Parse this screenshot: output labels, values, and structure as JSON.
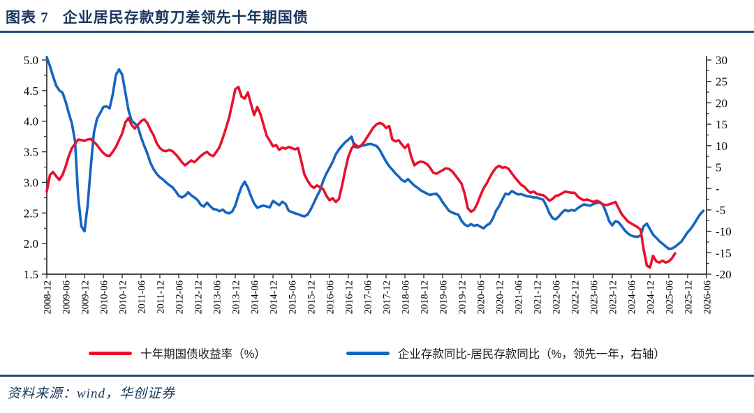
{
  "header": {
    "figure_label": "图表 7",
    "title": "企业居民存款剪刀差领先十年期国债"
  },
  "footer": {
    "source": "资料来源：wind，华创证券"
  },
  "colors": {
    "accent_navy": "#17365d",
    "rule_navy": "#1f4e79",
    "red_series": "#e8112d",
    "blue_series": "#1565c0",
    "axis": "#2f2f2f",
    "tick_text": "#000000"
  },
  "legend": {
    "items": [
      {
        "label": "十年期国债收益率（%）",
        "color": "#e8112d"
      },
      {
        "label": "企业存款同比-居民存款同比（%，领先一年，右轴）",
        "color": "#1565c0"
      }
    ]
  },
  "chart_data": {
    "type": "line",
    "title": "企业居民存款剪刀差领先十年期国债",
    "grid": false,
    "legend_position": "bottom",
    "x_start": "2008-12",
    "x_frequency": "monthly",
    "x_tick_every_months": 6,
    "x_tick_labels": [
      "2008-12",
      "2009-06",
      "2009-12",
      "2010-06",
      "2010-12",
      "2011-06",
      "2011-12",
      "2012-06",
      "2012-12",
      "2013-06",
      "2013-12",
      "2014-06",
      "2014-12",
      "2015-06",
      "2015-12",
      "2016-06",
      "2016-12",
      "2017-06",
      "2017-12",
      "2018-06",
      "2018-12",
      "2019-06",
      "2019-12",
      "2020-06",
      "2020-12",
      "2021-06",
      "2021-12",
      "2022-06",
      "2022-12",
      "2023-06",
      "2023-12",
      "2024-06",
      "2024-12",
      "2025-06",
      "2025-12",
      "2026-06"
    ],
    "left_axis": {
      "min": 1.5,
      "max": 5.0,
      "tick_values": [
        5.0,
        4.5,
        4.0,
        3.5,
        3.0,
        2.5,
        2.0,
        1.5
      ],
      "tick_labels": [
        "5.0",
        "4.5",
        "4.0",
        "3.5",
        "3.0",
        "2.5",
        "2.0",
        "1.5"
      ],
      "minor_tick_step": 0.25
    },
    "right_axis": {
      "min": -20,
      "max": 30,
      "tick_values": [
        30,
        25,
        20,
        15,
        10,
        5,
        0,
        -5,
        -10,
        -15,
        -20
      ],
      "tick_labels": [
        "30",
        "25",
        "20",
        "15",
        "10",
        "5",
        "-",
        "-5",
        "-10",
        "-15",
        "-20"
      ],
      "minor_tick_step": 2.5
    },
    "series": [
      {
        "name": "十年期国债收益率（%）",
        "axis": "left",
        "color": "#e8112d",
        "start": "2008-12",
        "end": "2025-08",
        "values": [
          2.85,
          3.12,
          3.17,
          3.1,
          3.04,
          3.12,
          3.26,
          3.43,
          3.56,
          3.63,
          3.7,
          3.69,
          3.68,
          3.7,
          3.71,
          3.66,
          3.61,
          3.54,
          3.48,
          3.44,
          3.43,
          3.5,
          3.58,
          3.69,
          3.8,
          3.98,
          4.05,
          3.94,
          3.88,
          3.94,
          4.0,
          4.03,
          3.97,
          3.86,
          3.77,
          3.64,
          3.56,
          3.52,
          3.51,
          3.53,
          3.51,
          3.46,
          3.4,
          3.33,
          3.28,
          3.32,
          3.36,
          3.33,
          3.38,
          3.43,
          3.47,
          3.5,
          3.45,
          3.43,
          3.5,
          3.58,
          3.72,
          3.88,
          4.05,
          4.28,
          4.52,
          4.56,
          4.4,
          4.37,
          4.47,
          4.28,
          4.1,
          4.23,
          4.12,
          3.94,
          3.76,
          3.68,
          3.59,
          3.61,
          3.53,
          3.57,
          3.55,
          3.58,
          3.56,
          3.54,
          3.56,
          3.35,
          3.13,
          3.03,
          2.95,
          2.91,
          2.95,
          2.92,
          2.89,
          2.78,
          2.71,
          2.74,
          2.68,
          2.73,
          2.95,
          3.2,
          3.42,
          3.55,
          3.63,
          3.58,
          3.6,
          3.66,
          3.74,
          3.82,
          3.9,
          3.95,
          3.97,
          3.95,
          3.89,
          3.92,
          3.7,
          3.67,
          3.69,
          3.62,
          3.56,
          3.62,
          3.42,
          3.28,
          3.32,
          3.34,
          3.33,
          3.3,
          3.24,
          3.16,
          3.14,
          3.17,
          3.2,
          3.23,
          3.22,
          3.18,
          3.12,
          3.05,
          2.98,
          2.82,
          2.58,
          2.52,
          2.55,
          2.65,
          2.78,
          2.9,
          2.98,
          3.08,
          3.17,
          3.24,
          3.27,
          3.24,
          3.25,
          3.22,
          3.15,
          3.08,
          3.02,
          2.96,
          2.93,
          2.87,
          2.83,
          2.85,
          2.81,
          2.8,
          2.79,
          2.75,
          2.7,
          2.73,
          2.78,
          2.79,
          2.82,
          2.85,
          2.84,
          2.83,
          2.83,
          2.77,
          2.73,
          2.71,
          2.72,
          2.7,
          2.68,
          2.7,
          2.68,
          2.64,
          2.63,
          2.64,
          2.66,
          2.68,
          2.58,
          2.48,
          2.42,
          2.36,
          2.33,
          2.3,
          2.27,
          2.23,
          1.9,
          1.64,
          1.61,
          1.8,
          1.71,
          1.69,
          1.72,
          1.69,
          1.71,
          1.76,
          1.84
        ]
      },
      {
        "name": "企业存款同比-居民存款同比（%，领先一年，右轴）",
        "axis": "right",
        "color": "#1565c0",
        "start": "2008-12",
        "end": "2026-05",
        "values": [
          30.6,
          28.6,
          26.2,
          24.0,
          22.9,
          22.4,
          20.3,
          17.6,
          15.2,
          11.0,
          -2.0,
          -8.8,
          -10.0,
          -4.0,
          5.0,
          13.0,
          16.3,
          17.6,
          19.0,
          19.2,
          18.7,
          22.0,
          26.5,
          27.8,
          26.6,
          22.5,
          18.3,
          15.8,
          15.2,
          14.4,
          12.0,
          10.0,
          8.2,
          6.0,
          4.5,
          3.4,
          2.6,
          2.1,
          1.4,
          0.8,
          0.3,
          -0.6,
          -1.7,
          -2.1,
          -1.7,
          -0.9,
          -1.6,
          -2.1,
          -2.7,
          -3.8,
          -4.2,
          -3.3,
          -4.1,
          -4.8,
          -4.9,
          -5.3,
          -4.9,
          -5.6,
          -5.8,
          -5.4,
          -4.0,
          -1.6,
          0.4,
          1.6,
          0.2,
          -1.8,
          -3.5,
          -4.5,
          -4.2,
          -4.0,
          -4.2,
          -4.4,
          -2.9,
          -3.4,
          -3.9,
          -3.1,
          -3.6,
          -5.2,
          -5.5,
          -5.8,
          -6.0,
          -6.3,
          -6.5,
          -6.1,
          -4.9,
          -3.4,
          -1.8,
          -0.4,
          1.8,
          3.5,
          4.8,
          6.2,
          8.0,
          9.1,
          10.0,
          10.8,
          11.4,
          12.1,
          9.7,
          9.6,
          9.9,
          10.1,
          10.3,
          10.4,
          10.2,
          9.9,
          9.0,
          7.6,
          6.3,
          5.2,
          4.4,
          3.5,
          2.8,
          2.0,
          1.6,
          2.2,
          1.4,
          0.7,
          0.2,
          -0.4,
          -0.8,
          -1.2,
          -1.5,
          -1.3,
          -1.2,
          -2.0,
          -3.2,
          -4.2,
          -5.2,
          -5.6,
          -5.9,
          -6.1,
          -7.5,
          -8.4,
          -8.8,
          -8.3,
          -8.7,
          -8.5,
          -8.9,
          -9.3,
          -8.6,
          -8.2,
          -7.0,
          -5.2,
          -4.1,
          -2.6,
          -1.2,
          -1.4,
          -0.6,
          -1.0,
          -1.4,
          -1.3,
          -1.6,
          -1.8,
          -1.9,
          -2.1,
          -2.1,
          -2.4,
          -2.6,
          -4.0,
          -5.8,
          -6.9,
          -7.2,
          -6.5,
          -5.6,
          -5.0,
          -5.3,
          -5.0,
          -5.2,
          -4.6,
          -4.1,
          -3.7,
          -3.9,
          -4.0,
          -3.6,
          -3.4,
          -3.2,
          -3.8,
          -5.5,
          -7.6,
          -8.6,
          -7.6,
          -7.9,
          -8.8,
          -9.8,
          -10.5,
          -11.0,
          -11.2,
          -11.3,
          -11.0,
          -8.8,
          -8.2,
          -9.5,
          -10.8,
          -11.5,
          -12.3,
          -12.9,
          -13.5,
          -14.1,
          -14.0,
          -13.6,
          -13.0,
          -12.4,
          -11.3,
          -10.2,
          -9.4,
          -8.3,
          -7.1,
          -6.0,
          -5.2
        ]
      }
    ]
  }
}
